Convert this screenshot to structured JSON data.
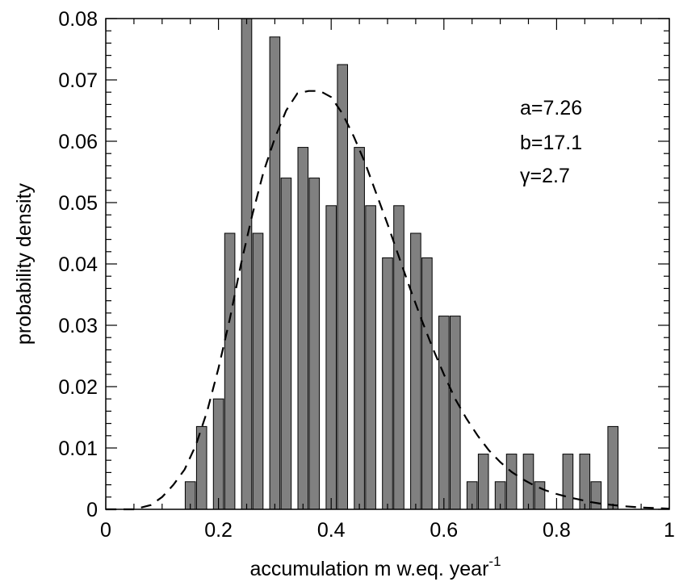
{
  "chart_data": {
    "type": "bar",
    "title": "",
    "xlabel": "accumulation m w.eq. year",
    "xlabel_superscript": "-1",
    "ylabel": "probability density",
    "xlim": [
      0,
      1
    ],
    "ylim": [
      0,
      0.08
    ],
    "xticks": [
      0,
      0.2,
      0.4,
      0.6,
      0.8,
      1
    ],
    "xtick_labels": [
      "0",
      "0.2",
      "0.4",
      "0.6",
      "0.8",
      "1"
    ],
    "yticks": [
      0,
      0.01,
      0.02,
      0.03,
      0.04,
      0.05,
      0.06,
      0.07,
      0.08
    ],
    "ytick_labels": [
      "0",
      "0.01",
      "0.02",
      "0.03",
      "0.04",
      "0.05",
      "0.06",
      "0.07",
      "0.08"
    ],
    "bar_width": 0.018,
    "bars": [
      {
        "x": 0.15,
        "y": 0.0045
      },
      {
        "x": 0.17,
        "y": 0.0135
      },
      {
        "x": 0.2,
        "y": 0.018
      },
      {
        "x": 0.22,
        "y": 0.045
      },
      {
        "x": 0.25,
        "y": 0.08
      },
      {
        "x": 0.27,
        "y": 0.045
      },
      {
        "x": 0.3,
        "y": 0.077
      },
      {
        "x": 0.32,
        "y": 0.054
      },
      {
        "x": 0.35,
        "y": 0.059
      },
      {
        "x": 0.37,
        "y": 0.054
      },
      {
        "x": 0.4,
        "y": 0.0495
      },
      {
        "x": 0.42,
        "y": 0.0725
      },
      {
        "x": 0.45,
        "y": 0.059
      },
      {
        "x": 0.47,
        "y": 0.0495
      },
      {
        "x": 0.5,
        "y": 0.041
      },
      {
        "x": 0.52,
        "y": 0.0495
      },
      {
        "x": 0.55,
        "y": 0.045
      },
      {
        "x": 0.57,
        "y": 0.041
      },
      {
        "x": 0.6,
        "y": 0.0315
      },
      {
        "x": 0.62,
        "y": 0.0315
      },
      {
        "x": 0.65,
        "y": 0.0045
      },
      {
        "x": 0.67,
        "y": 0.009
      },
      {
        "x": 0.7,
        "y": 0.0045
      },
      {
        "x": 0.72,
        "y": 0.009
      },
      {
        "x": 0.75,
        "y": 0.009
      },
      {
        "x": 0.77,
        "y": 0.0045
      },
      {
        "x": 0.82,
        "y": 0.009
      },
      {
        "x": 0.85,
        "y": 0.009
      },
      {
        "x": 0.87,
        "y": 0.0045
      },
      {
        "x": 0.9,
        "y": 0.0135
      }
    ],
    "fit_curve": {
      "style": "dashed",
      "x": [
        0.0,
        0.05,
        0.08,
        0.1,
        0.12,
        0.14,
        0.16,
        0.18,
        0.2,
        0.22,
        0.24,
        0.26,
        0.28,
        0.3,
        0.32,
        0.34,
        0.36,
        0.38,
        0.4,
        0.42,
        0.44,
        0.46,
        0.48,
        0.5,
        0.52,
        0.54,
        0.56,
        0.58,
        0.6,
        0.62,
        0.64,
        0.66,
        0.68,
        0.7,
        0.72,
        0.74,
        0.76,
        0.78,
        0.8,
        0.82,
        0.84,
        0.86,
        0.88,
        0.9,
        0.92,
        0.95,
        1.0
      ],
      "y": [
        0.0,
        0.0,
        0.0007,
        0.002,
        0.004,
        0.0065,
        0.0105,
        0.016,
        0.023,
        0.031,
        0.04,
        0.048,
        0.055,
        0.0605,
        0.065,
        0.0678,
        0.0682,
        0.0682,
        0.0672,
        0.0645,
        0.0608,
        0.0565,
        0.0515,
        0.0465,
        0.0412,
        0.036,
        0.031,
        0.0263,
        0.022,
        0.018,
        0.0148,
        0.012,
        0.0096,
        0.0077,
        0.0061,
        0.0049,
        0.0039,
        0.0031,
        0.0025,
        0.002,
        0.0016,
        0.0012,
        0.0009,
        0.0007,
        0.0005,
        0.0003,
        0.0001
      ]
    },
    "annotations": [
      "a=7.26",
      "b=17.1",
      "γ=2.7"
    ],
    "grid": false,
    "legend": "none"
  }
}
